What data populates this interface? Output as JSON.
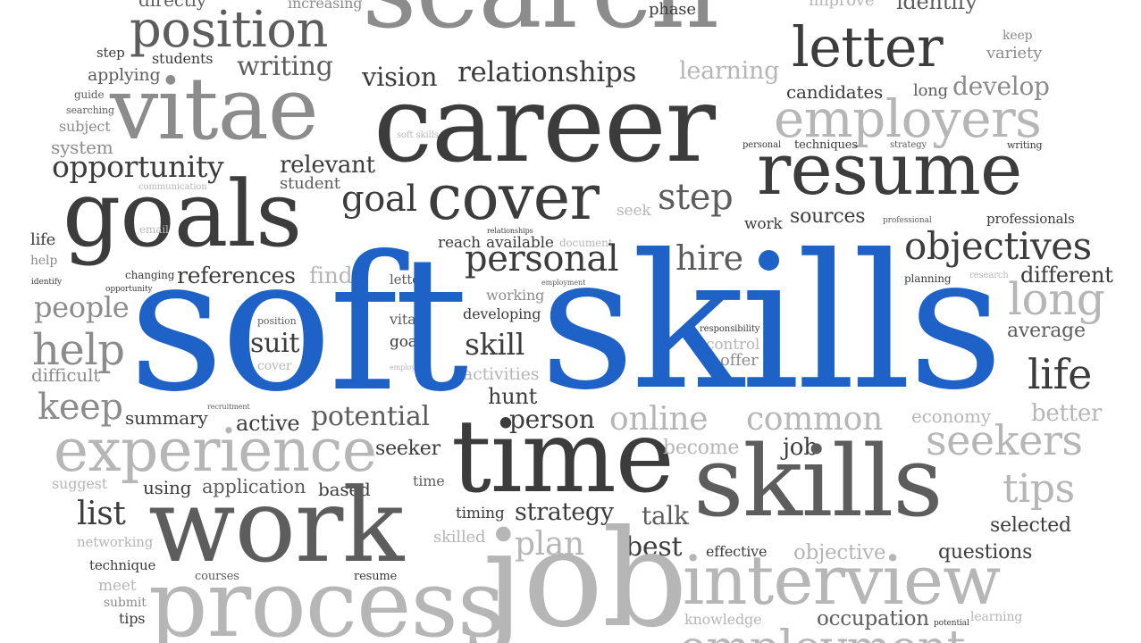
{
  "accent_color": "#1f62c7",
  "words": {
    "soft": "soft",
    "skills_main": "skills",
    "career": "career",
    "search": "search",
    "vitae": "vitae",
    "letter": "letter",
    "position": "position",
    "resume": "resume",
    "goals": "goals",
    "cover": "cover",
    "employers": "employers",
    "opportunity": "opportunity",
    "time": "time",
    "work": "work",
    "process": "process",
    "job": "job",
    "skills2": "skills",
    "experience": "experience",
    "interview": "interview",
    "objectives": "objectives",
    "personal": "personal",
    "hire": "hire",
    "long": "long",
    "life": "life",
    "help": "help",
    "people": "people",
    "keep": "keep",
    "common": "common",
    "online": "online",
    "seekers": "seekers",
    "tips": "tips",
    "step": "step",
    "goal": "goal",
    "relationships": "relationships",
    "vision": "vision",
    "writing": "writing",
    "learning": "learning",
    "candidates": "candidates",
    "develop": "develop",
    "references": "references",
    "find": "find",
    "potential": "potential",
    "active": "active",
    "summary": "summary",
    "strategy": "strategy",
    "plan": "plan",
    "best": "best",
    "talk": "talk",
    "list": "list",
    "suit": "suit",
    "skill": "skill",
    "person": "person",
    "hunt": "hunt",
    "selected": "selected",
    "questions": "questions",
    "objective": "objective",
    "occupation": "occupation",
    "better": "better",
    "different": "different",
    "average": "average",
    "economy": "economy",
    "sources": "sources",
    "professionals": "professionals",
    "relevant": "relevant",
    "student": "student",
    "students": "students",
    "applying": "applying",
    "directly": "directly",
    "increasing": "increasing",
    "phase": "phase",
    "improve": "improve",
    "identify": "identify",
    "keep_small": "keep",
    "variety": "variety",
    "subject": "subject",
    "system": "system",
    "guide": "guide",
    "searching": "searching",
    "communication": "communication",
    "soft_skills": "soft skills",
    "personal_small": "personal",
    "techniques": "techniques",
    "strategy_small": "strategy",
    "writing_small": "writing",
    "work_small": "work",
    "professional": "professional",
    "seek": "seek",
    "email": "email",
    "life_small": "life",
    "help_small": "help",
    "identify_small": "identify",
    "changing": "changing",
    "opportunity_small": "opportunity",
    "relationships_small": "relationships",
    "reach": "reach",
    "available": "available",
    "document": "document",
    "letter_small": "letter",
    "working": "working",
    "employment_small": "employment",
    "developing": "developing",
    "position_small": "position",
    "vitae_small": "vitae",
    "goals_small": "goals",
    "cover_small": "cover",
    "employers_small": "employers",
    "activities": "activities",
    "responsibility": "responsibility",
    "control": "control",
    "offer": "offer",
    "planning": "planning",
    "research": "research",
    "difficult": "difficult",
    "recruitment": "recruitment",
    "seeker": "seeker",
    "become": "become",
    "suggest": "suggest",
    "using": "using",
    "application": "application",
    "based": "based",
    "time_small": "time",
    "timing": "timing",
    "skilled": "skilled",
    "networking": "networking",
    "technique": "technique",
    "meet": "meet",
    "courses": "courses",
    "resume_small": "resume",
    "submit": "submit",
    "tips_small": "tips",
    "effective": "effective",
    "knowledge": "knowledge",
    "potential_small": "potential",
    "learning_small": "learning",
    "employment": "employment",
    "step_small": "step",
    "job_small": "job"
  }
}
